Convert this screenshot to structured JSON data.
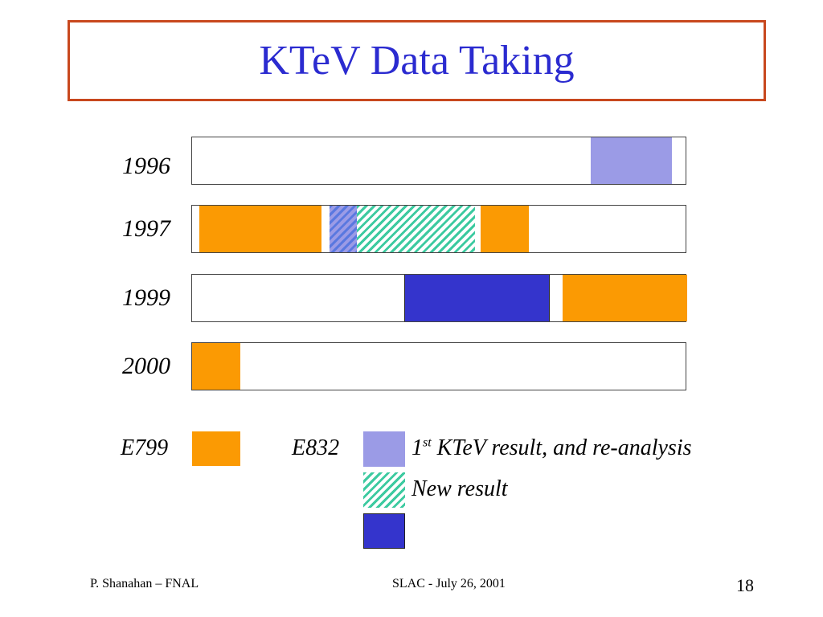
{
  "title": "KTeV Data Taking",
  "rows": [
    {
      "year": "1996"
    },
    {
      "year": "1997"
    },
    {
      "year": "1999"
    },
    {
      "year": "2000"
    }
  ],
  "legend": {
    "e799": "E799",
    "e832": "E832",
    "first_result_sup": "st",
    "first_result_prefix": "1",
    "first_result_rest": " KTeV result, and re-analysis",
    "new_result": "New result"
  },
  "colors": {
    "e799": "#fb9a03",
    "first_result": "#9b9be6",
    "new_result_hatch": "#3ccaa0",
    "third_blue": "#3434cc",
    "title": "#2b2bd0",
    "title_border": "#c8481e"
  },
  "footer": {
    "left": "P. Shanahan – FNAL",
    "center": "SLAC  -  July 26, 2001",
    "page": "18"
  }
}
